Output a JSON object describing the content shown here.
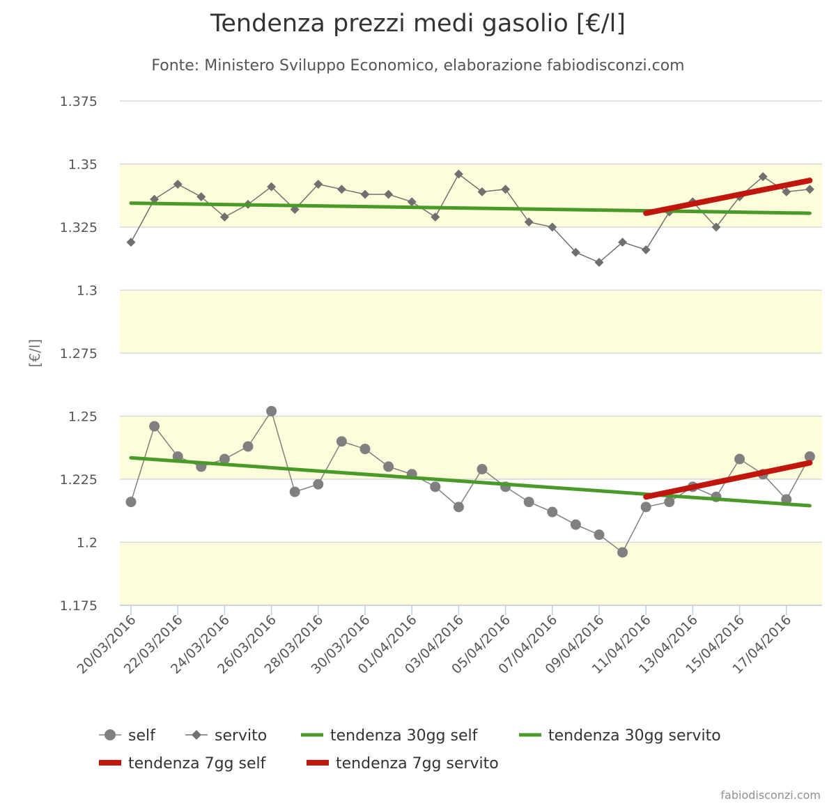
{
  "chart_data": {
    "type": "line",
    "title": "Tendenza prezzi medi gasolio [€/l]",
    "subtitle": "Fonte: Ministero Sviluppo Economico, elaborazione fabiodisconzi.com",
    "ylabel": "[€/l]",
    "xlabel": "",
    "ylim": [
      1.175,
      1.375
    ],
    "yticks": [
      1.175,
      1.2,
      1.225,
      1.25,
      1.275,
      1.3,
      1.325,
      1.35,
      1.375
    ],
    "ytick_labels": [
      "1.175",
      "1.2",
      "1.225",
      "1.25",
      "1.275",
      "1.3",
      "1.325",
      "1.35",
      "1.375"
    ],
    "bands": [
      [
        1.175,
        1.2
      ],
      [
        1.225,
        1.25
      ],
      [
        1.275,
        1.3
      ],
      [
        1.325,
        1.35
      ]
    ],
    "band_color": "#fdfddc",
    "categories": [
      "20/03/2016",
      "21/03/2016",
      "22/03/2016",
      "23/03/2016",
      "24/03/2016",
      "25/03/2016",
      "26/03/2016",
      "27/03/2016",
      "28/03/2016",
      "29/03/2016",
      "30/03/2016",
      "31/03/2016",
      "01/04/2016",
      "02/04/2016",
      "03/04/2016",
      "04/04/2016",
      "05/04/2016",
      "06/04/2016",
      "07/04/2016",
      "08/04/2016",
      "09/04/2016",
      "10/04/2016",
      "11/04/2016",
      "12/04/2016",
      "13/04/2016",
      "14/04/2016",
      "15/04/2016",
      "16/04/2016",
      "17/04/2016",
      "18/04/2016"
    ],
    "x_tick_labels": [
      "20/03/2016",
      "22/03/2016",
      "24/03/2016",
      "26/03/2016",
      "28/03/2016",
      "30/03/2016",
      "01/04/2016",
      "03/04/2016",
      "05/04/2016",
      "07/04/2016",
      "09/04/2016",
      "11/04/2016",
      "13/04/2016",
      "15/04/2016",
      "17/04/2016"
    ],
    "series": [
      {
        "name": "self",
        "kind": "points",
        "marker": "circle",
        "color": "#808080",
        "values": [
          1.216,
          1.246,
          1.234,
          1.23,
          1.233,
          1.238,
          1.252,
          1.22,
          1.223,
          1.24,
          1.237,
          1.23,
          1.227,
          1.222,
          1.214,
          1.229,
          1.222,
          1.216,
          1.212,
          1.207,
          1.203,
          1.196,
          1.214,
          1.216,
          1.222,
          1.218,
          1.233,
          1.227,
          1.217,
          1.234
        ]
      },
      {
        "name": "servito",
        "kind": "points",
        "marker": "diamond",
        "color": "#707070",
        "values": [
          1.319,
          1.336,
          1.342,
          1.337,
          1.329,
          1.334,
          1.341,
          1.332,
          1.342,
          1.34,
          1.338,
          1.338,
          1.335,
          1.329,
          1.346,
          1.339,
          1.34,
          1.327,
          1.325,
          1.315,
          1.311,
          1.319,
          1.316,
          1.331,
          1.335,
          1.325,
          1.337,
          1.345,
          1.339,
          1.34
        ]
      },
      {
        "name": "tendenza 30gg self",
        "kind": "trend",
        "color": "#4a9a2a",
        "from_index": 0,
        "to_index": 29,
        "start": 1.2335,
        "end": 1.2145
      },
      {
        "name": "tendenza 30gg servito",
        "kind": "trend",
        "color": "#4a9a2a",
        "from_index": 0,
        "to_index": 29,
        "start": 1.3345,
        "end": 1.3305
      },
      {
        "name": "tendenza 7gg self",
        "kind": "trend",
        "color": "#c0160d",
        "from_index": 22,
        "to_index": 29,
        "start": 1.218,
        "end": 1.2315
      },
      {
        "name": "tendenza 7gg servito",
        "kind": "trend",
        "color": "#c0160d",
        "from_index": 22,
        "to_index": 29,
        "start": 1.3305,
        "end": 1.3435
      }
    ],
    "legend_position": "bottom"
  },
  "credits": "fabiodisconzi.com"
}
